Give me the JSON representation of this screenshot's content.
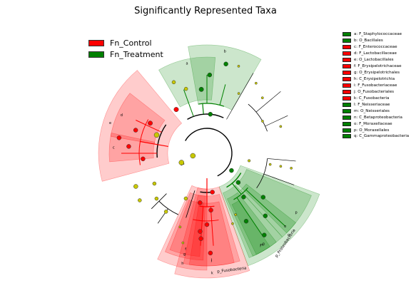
{
  "title": "Significantly Represented Taxa",
  "colors": {
    "Fn_Control": "#ff0000",
    "Fn_Treatment": "#008000",
    "neutral": "#c8c800"
  },
  "groups": [
    {
      "label": "Fn_Control",
      "color": "#ff0000"
    },
    {
      "label": "Fn_Treatment",
      "color": "#008000"
    }
  ],
  "taxa_legend": [
    {
      "letter": "a",
      "text": "a: F_Staphylococcaceae",
      "group": "Fn_Treatment"
    },
    {
      "letter": "b",
      "text": "b: O_Bacillales",
      "group": "Fn_Treatment"
    },
    {
      "letter": "c",
      "text": "c: F_Enterococcaceae",
      "group": "Fn_Control"
    },
    {
      "letter": "d",
      "text": "d: F_Lactobacillaceae",
      "group": "Fn_Control"
    },
    {
      "letter": "e",
      "text": "e: O_Lactobacillales",
      "group": "Fn_Control"
    },
    {
      "letter": "f",
      "text": "f: F_Erysipelotrichaceae",
      "group": "Fn_Control"
    },
    {
      "letter": "g",
      "text": "g: O_Erysipelotrichales",
      "group": "Fn_Control"
    },
    {
      "letter": "h",
      "text": "h: C_Erysipelotrichia",
      "group": "Fn_Control"
    },
    {
      "letter": "i",
      "text": "i: F_Fusobacteriaceae",
      "group": "Fn_Control"
    },
    {
      "letter": "j",
      "text": "j: O_Fusobacteriales",
      "group": "Fn_Control"
    },
    {
      "letter": "k",
      "text": "k: C_Fusobacteria",
      "group": "Fn_Control"
    },
    {
      "letter": "l",
      "text": "l: F_Neisseriaceae",
      "group": "Fn_Treatment"
    },
    {
      "letter": "m",
      "text": "m: O_Neisseriales",
      "group": "Fn_Treatment"
    },
    {
      "letter": "n",
      "text": "n: C_Betaproteobacteria",
      "group": "Fn_Treatment"
    },
    {
      "letter": "o",
      "text": "o: F_Moraxellaceae",
      "group": "Fn_Treatment"
    },
    {
      "letter": "p",
      "text": "p: O_Moraxellales",
      "group": "Fn_Treatment"
    },
    {
      "letter": "q",
      "text": "q: C_Gammaproteobacteria",
      "group": "Fn_Treatment"
    }
  ],
  "phylum_labels": [
    "p_Proteobacteria",
    "p_Fusobacteria"
  ]
}
